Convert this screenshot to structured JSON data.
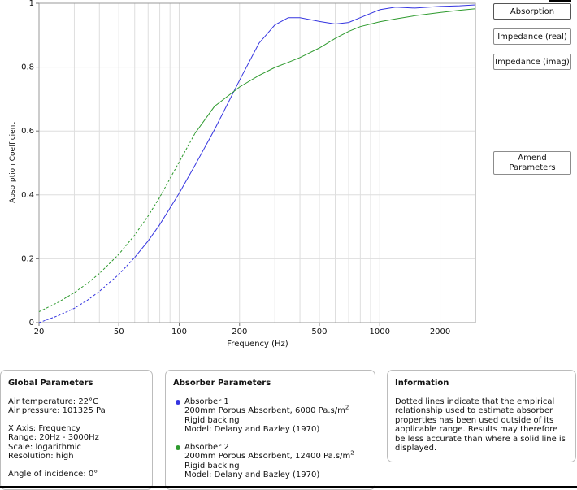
{
  "buttons": {
    "absorption": "Absorption",
    "impedance_real": "Impedance (real)",
    "impedance_imag": "Impedance (imag)",
    "amend_line1": "Amend",
    "amend_line2": "Parameters"
  },
  "chart_data": {
    "type": "line",
    "title": "",
    "xlabel": "Frequency (Hz)",
    "ylabel": "Absorption Coefficient",
    "xscale": "log",
    "xlim": [
      20,
      3000
    ],
    "ylim": [
      0,
      1
    ],
    "xticks": [
      "20",
      "50",
      "100",
      "200",
      "500",
      "1000",
      "2000"
    ],
    "yticks": [
      "0",
      "0.2",
      "0.4",
      "0.6",
      "0.8",
      "1"
    ],
    "grid": true,
    "legend": "none",
    "series": [
      {
        "color": "#3535e0",
        "x": [
          20,
          25,
          30,
          35,
          40,
          50,
          60,
          70,
          80,
          100,
          120,
          150,
          200,
          250,
          300,
          350,
          400,
          500,
          600,
          700,
          800,
          1000,
          1200,
          1500,
          2000,
          2500,
          3000
        ],
        "y": [
          0.0,
          0.022,
          0.045,
          0.071,
          0.098,
          0.151,
          0.204,
          0.256,
          0.307,
          0.405,
          0.493,
          0.604,
          0.759,
          0.875,
          0.932,
          0.955,
          0.955,
          0.943,
          0.935,
          0.94,
          0.955,
          0.98,
          0.988,
          0.985,
          0.99,
          0.992,
          0.995
        ],
        "dotted_below_x": 60
      },
      {
        "color": "#2e9a2e",
        "x": [
          20,
          25,
          30,
          35,
          40,
          50,
          60,
          70,
          80,
          100,
          120,
          150,
          200,
          250,
          300,
          350,
          400,
          500,
          600,
          700,
          800,
          1000,
          1200,
          1500,
          2000,
          2500,
          3000
        ],
        "y": [
          0.034,
          0.064,
          0.094,
          0.124,
          0.154,
          0.214,
          0.274,
          0.334,
          0.393,
          0.503,
          0.593,
          0.677,
          0.738,
          0.774,
          0.799,
          0.815,
          0.83,
          0.86,
          0.89,
          0.912,
          0.927,
          0.942,
          0.951,
          0.961,
          0.971,
          0.978,
          0.983
        ],
        "dotted_below_x": 120
      }
    ]
  },
  "panels": {
    "global": {
      "title": "Global Parameters",
      "air_temperature": "Air temperature: 22°C",
      "air_pressure": "Air pressure: 101325 Pa",
      "x_axis": "X Axis: Frequency",
      "range": "Range: 20Hz - 3000Hz",
      "scale": "Scale: logarithmic",
      "resolution": "Resolution: high",
      "angle": "Angle of incidence: 0°"
    },
    "absorber": {
      "title": "Absorber Parameters",
      "items": [
        {
          "name": "Absorber 1",
          "description": "200mm Porous Absorbent, 6000 Pa.s/m",
          "sup": "2",
          "backing": "Rigid backing",
          "model": "Model: Delany and Bazley (1970)",
          "color": "#3535e0"
        },
        {
          "name": "Absorber 2",
          "description": "200mm Porous Absorbent, 12400 Pa.s/m",
          "sup": "2",
          "backing": "Rigid backing",
          "model": "Model: Delany and Bazley (1970)",
          "color": "#2e9a2e"
        }
      ]
    },
    "info": {
      "title": "Information",
      "text": "Dotted lines indicate that the empirical relationship used to estimate absorber properties has been used outside of its applicable range. Results may therefore be less accurate than where a solid line is displayed."
    }
  }
}
